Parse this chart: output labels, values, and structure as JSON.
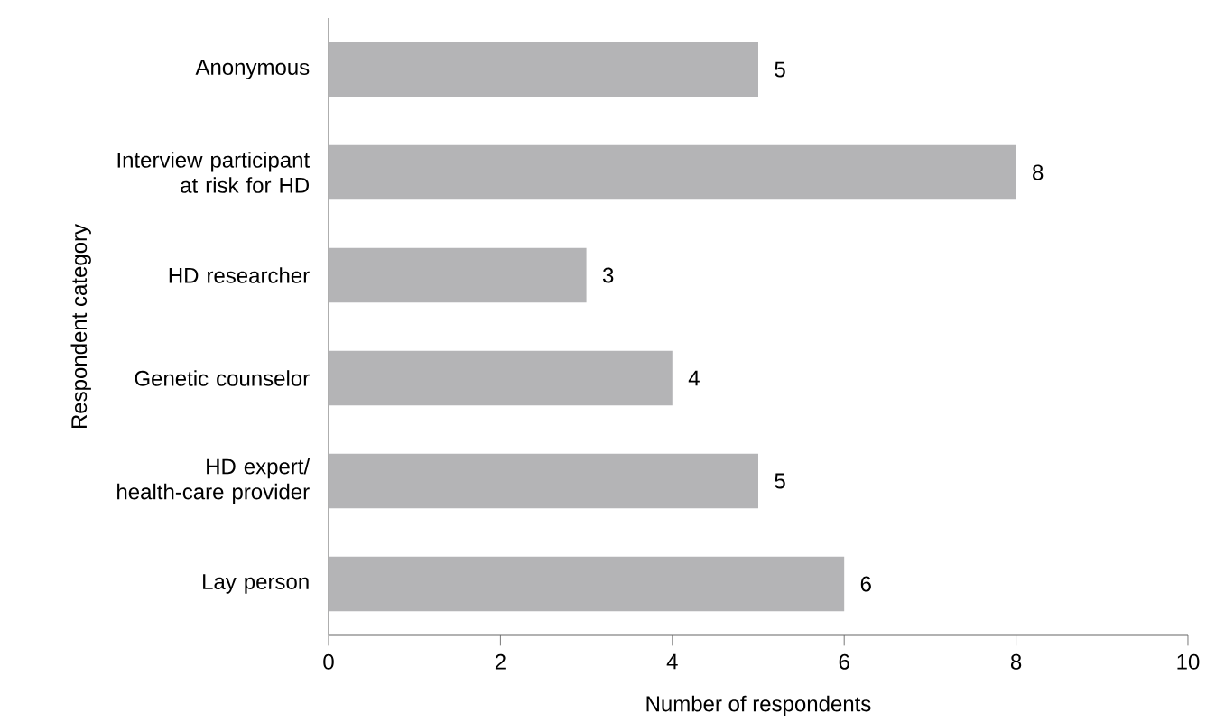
{
  "chart_data": {
    "type": "bar",
    "orientation": "horizontal",
    "xlabel": "Number of respondents",
    "ylabel": "Respondent category",
    "categories": [
      "Anonymous",
      "Interview participant at risk for HD",
      "HD researcher",
      "Genetic counselor",
      "HD expert/ health-care provider",
      "Lay person"
    ],
    "values": [
      5,
      8,
      3,
      4,
      5,
      6
    ],
    "color": "#b4b4b6",
    "xlim": [
      0,
      10
    ],
    "xticks": [
      0,
      2,
      4,
      6,
      8,
      10
    ],
    "data_labels": true
  }
}
